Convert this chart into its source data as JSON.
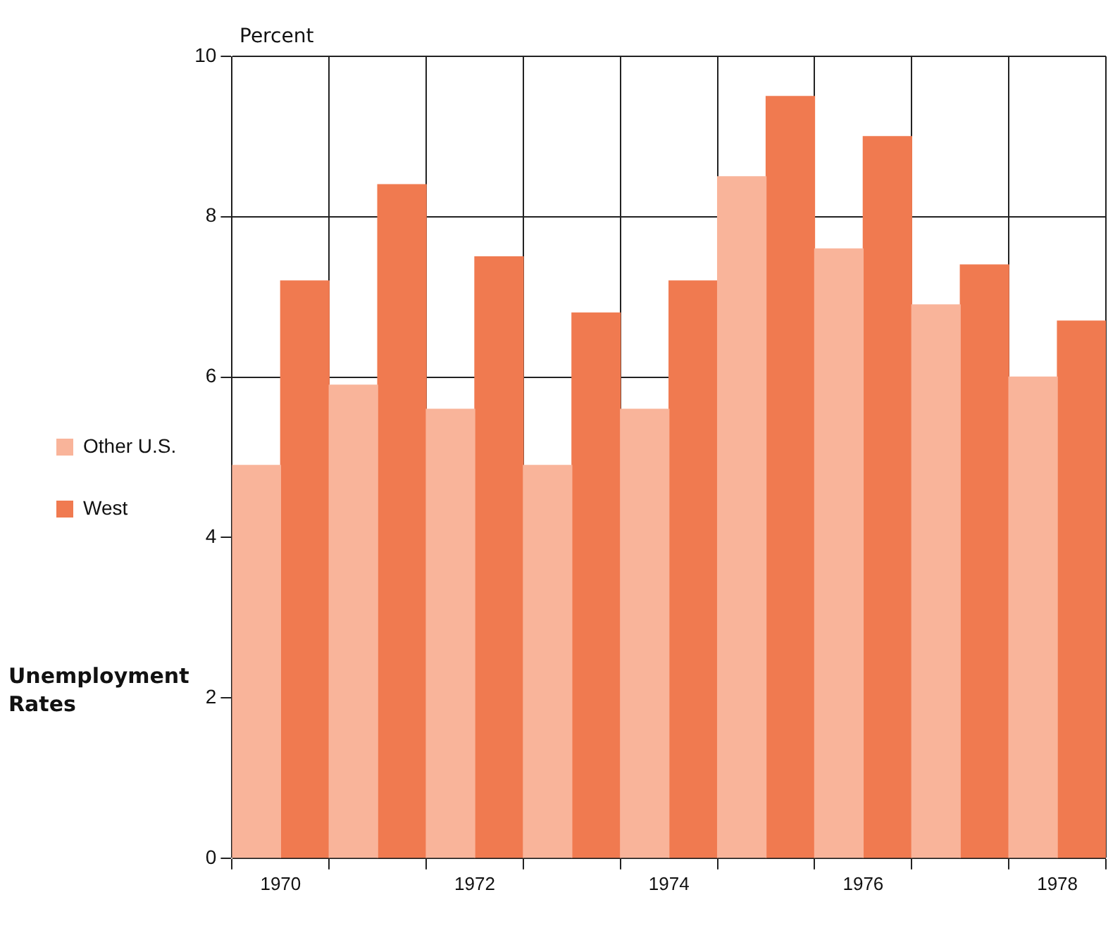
{
  "chart_data": {
    "type": "bar",
    "title": "Unemployment Rates",
    "ylabel": "Percent",
    "categories": [
      "1970",
      null,
      "1972",
      null,
      "1974",
      null,
      "1976",
      null,
      "1978"
    ],
    "series": [
      {
        "name": "Other U.S.",
        "color": "#f9b49a",
        "values": [
          4.9,
          5.9,
          5.6,
          4.9,
          5.6,
          8.5,
          7.6,
          6.9,
          6.0
        ]
      },
      {
        "name": "West",
        "color": "#f07a50",
        "values": [
          7.2,
          8.4,
          7.5,
          6.8,
          7.2,
          9.5,
          9.0,
          7.4,
          6.7
        ]
      }
    ],
    "ylim": [
      0,
      10
    ],
    "yticks": [
      0,
      2,
      4,
      6,
      8,
      10
    ],
    "grid": true,
    "legend": "left"
  }
}
